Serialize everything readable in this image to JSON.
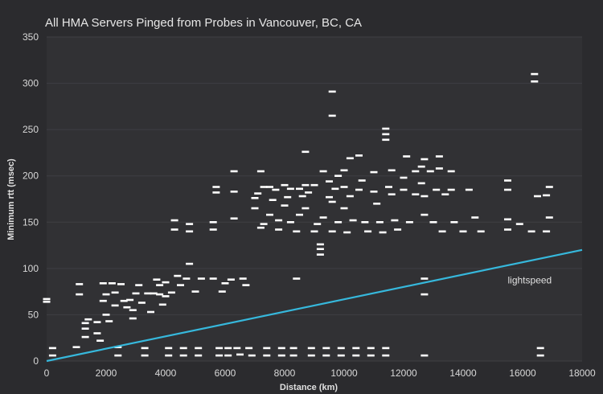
{
  "chart_data": {
    "type": "scatter",
    "title": "All HMA Servers Pinged from Probes in Vancouver, BC, CA",
    "xlabel": "Distance (km)",
    "ylabel": "Minimum rtt (msec)",
    "xlim": [
      0,
      18000
    ],
    "ylim": [
      0,
      350
    ],
    "xticks": [
      0,
      2000,
      4000,
      6000,
      8000,
      10000,
      12000,
      14000,
      16000,
      18000
    ],
    "yticks": [
      0,
      50,
      100,
      150,
      200,
      250,
      300,
      350
    ],
    "grid": true,
    "marker_color": "#ffffff",
    "background_color": "#2b2b2e",
    "plot_background_color": "#313134",
    "grid_color": "#3f3f43",
    "series": [
      {
        "values": [
          [
            0,
            67
          ],
          [
            0,
            64
          ],
          [
            200,
            14
          ],
          [
            200,
            6
          ],
          [
            1000,
            15
          ],
          [
            1100,
            83
          ],
          [
            1100,
            72
          ],
          [
            1300,
            41
          ],
          [
            1300,
            35
          ],
          [
            1300,
            26
          ],
          [
            1400,
            45
          ],
          [
            1700,
            42
          ],
          [
            1700,
            30
          ],
          [
            1800,
            22
          ],
          [
            1900,
            65
          ],
          [
            1900,
            84
          ],
          [
            2000,
            72
          ],
          [
            2000,
            50
          ],
          [
            2100,
            43
          ],
          [
            2200,
            84
          ],
          [
            2300,
            74
          ],
          [
            2300,
            60
          ],
          [
            2400,
            15
          ],
          [
            2400,
            6
          ],
          [
            2500,
            83
          ],
          [
            2600,
            65
          ],
          [
            2700,
            58
          ],
          [
            2800,
            66
          ],
          [
            2900,
            55
          ],
          [
            2900,
            46
          ],
          [
            3000,
            73
          ],
          [
            3100,
            82
          ],
          [
            3200,
            63
          ],
          [
            3300,
            14
          ],
          [
            3300,
            6
          ],
          [
            3400,
            73
          ],
          [
            3500,
            53
          ],
          [
            3600,
            73
          ],
          [
            3700,
            88
          ],
          [
            3800,
            72
          ],
          [
            3800,
            82
          ],
          [
            3900,
            61
          ],
          [
            4000,
            70
          ],
          [
            4000,
            85
          ],
          [
            4100,
            14
          ],
          [
            4100,
            6
          ],
          [
            4200,
            74
          ],
          [
            4300,
            152
          ],
          [
            4300,
            142
          ],
          [
            4400,
            92
          ],
          [
            4500,
            82
          ],
          [
            4600,
            14
          ],
          [
            4600,
            6
          ],
          [
            4700,
            89
          ],
          [
            4800,
            105
          ],
          [
            4800,
            148
          ],
          [
            4800,
            140
          ],
          [
            5000,
            75
          ],
          [
            5100,
            14
          ],
          [
            5100,
            6
          ],
          [
            5200,
            89
          ],
          [
            5600,
            150
          ],
          [
            5600,
            142
          ],
          [
            5700,
            188
          ],
          [
            5700,
            182
          ],
          [
            5600,
            89
          ],
          [
            5800,
            14
          ],
          [
            5800,
            6
          ],
          [
            5900,
            75
          ],
          [
            6000,
            84
          ],
          [
            6100,
            14
          ],
          [
            6100,
            6
          ],
          [
            6200,
            88
          ],
          [
            6300,
            205
          ],
          [
            6300,
            183
          ],
          [
            6300,
            154
          ],
          [
            6400,
            14
          ],
          [
            6500,
            7
          ],
          [
            6600,
            89
          ],
          [
            6700,
            82
          ],
          [
            6800,
            14
          ],
          [
            6900,
            6
          ],
          [
            7000,
            165
          ],
          [
            7000,
            176
          ],
          [
            7100,
            181
          ],
          [
            7200,
            205
          ],
          [
            7200,
            144
          ],
          [
            7300,
            188
          ],
          [
            7300,
            148
          ],
          [
            7400,
            14
          ],
          [
            7400,
            6
          ],
          [
            7500,
            188
          ],
          [
            7500,
            158
          ],
          [
            7600,
            174
          ],
          [
            7700,
            185
          ],
          [
            7800,
            152
          ],
          [
            7800,
            142
          ],
          [
            7900,
            14
          ],
          [
            7900,
            6
          ],
          [
            8000,
            190
          ],
          [
            8000,
            168
          ],
          [
            8100,
            177
          ],
          [
            8200,
            186
          ],
          [
            8200,
            150
          ],
          [
            8300,
            14
          ],
          [
            8300,
            6
          ],
          [
            8400,
            140
          ],
          [
            8400,
            89
          ],
          [
            8500,
            186
          ],
          [
            8500,
            158
          ],
          [
            8600,
            178
          ],
          [
            8700,
            226
          ],
          [
            8700,
            190
          ],
          [
            8700,
            165
          ],
          [
            8800,
            182
          ],
          [
            8900,
            14
          ],
          [
            8900,
            6
          ],
          [
            9000,
            190
          ],
          [
            9000,
            140
          ],
          [
            9100,
            148
          ],
          [
            9200,
            126
          ],
          [
            9200,
            121
          ],
          [
            9200,
            115
          ],
          [
            9300,
            205
          ],
          [
            9300,
            155
          ],
          [
            9400,
            14
          ],
          [
            9400,
            6
          ],
          [
            9500,
            194
          ],
          [
            9500,
            177
          ],
          [
            9600,
            291
          ],
          [
            9600,
            265
          ],
          [
            9600,
            172
          ],
          [
            9600,
            140
          ],
          [
            9700,
            186
          ],
          [
            9800,
            200
          ],
          [
            9800,
            150
          ],
          [
            9900,
            14
          ],
          [
            9900,
            6
          ],
          [
            10000,
            206
          ],
          [
            10000,
            188
          ],
          [
            10000,
            165
          ],
          [
            10100,
            139
          ],
          [
            10200,
            219
          ],
          [
            10200,
            178
          ],
          [
            10300,
            152
          ],
          [
            10400,
            14
          ],
          [
            10400,
            6
          ],
          [
            10500,
            222
          ],
          [
            10500,
            185
          ],
          [
            10600,
            195
          ],
          [
            10700,
            150
          ],
          [
            10800,
            140
          ],
          [
            10900,
            14
          ],
          [
            10900,
            6
          ],
          [
            11000,
            204
          ],
          [
            11000,
            183
          ],
          [
            11100,
            170
          ],
          [
            11200,
            150
          ],
          [
            11300,
            139
          ],
          [
            11400,
            251
          ],
          [
            11400,
            245
          ],
          [
            11400,
            239
          ],
          [
            11400,
            14
          ],
          [
            11400,
            6
          ],
          [
            11500,
            188
          ],
          [
            11600,
            206
          ],
          [
            11600,
            180
          ],
          [
            11700,
            152
          ],
          [
            11800,
            142
          ],
          [
            12000,
            198
          ],
          [
            12000,
            185
          ],
          [
            12100,
            221
          ],
          [
            12200,
            150
          ],
          [
            12400,
            205
          ],
          [
            12400,
            180
          ],
          [
            12600,
            210
          ],
          [
            12600,
            192
          ],
          [
            12700,
            218
          ],
          [
            12700,
            178
          ],
          [
            12700,
            158
          ],
          [
            12700,
            89
          ],
          [
            12700,
            72
          ],
          [
            12700,
            6
          ],
          [
            12900,
            205
          ],
          [
            13000,
            150
          ],
          [
            13100,
            185
          ],
          [
            13200,
            221
          ],
          [
            13200,
            208
          ],
          [
            13300,
            140
          ],
          [
            13400,
            180
          ],
          [
            13600,
            205
          ],
          [
            13600,
            185
          ],
          [
            13700,
            150
          ],
          [
            14000,
            140
          ],
          [
            14200,
            185
          ],
          [
            14400,
            155
          ],
          [
            14600,
            140
          ],
          [
            15500,
            195
          ],
          [
            15500,
            185
          ],
          [
            15500,
            153
          ],
          [
            15500,
            142
          ],
          [
            15900,
            148
          ],
          [
            16300,
            140
          ],
          [
            16400,
            310
          ],
          [
            16400,
            302
          ],
          [
            16500,
            178
          ],
          [
            16600,
            14
          ],
          [
            16600,
            6
          ],
          [
            16800,
            179
          ],
          [
            16800,
            140
          ],
          [
            16900,
            188
          ],
          [
            16900,
            155
          ]
        ]
      },
      {
        "name": "lightspeed",
        "type": "line",
        "color": "#36b8dc",
        "values": [
          [
            0,
            0
          ],
          [
            18000,
            120
          ]
        ]
      }
    ],
    "annotations": [
      {
        "text": "lightspeed",
        "x": 15500,
        "y": 88
      }
    ]
  }
}
